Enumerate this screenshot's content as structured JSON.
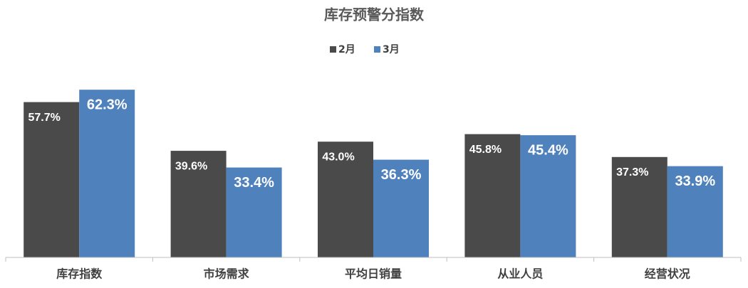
{
  "chart_data": {
    "type": "bar",
    "title": "库存预警分指数",
    "categories": [
      "库存指数",
      "市场需求",
      "平均日销量",
      "从业人员",
      "经营状况"
    ],
    "series": [
      {
        "name": "2月",
        "color": "#4a4a4a",
        "values": [
          57.7,
          39.6,
          43.0,
          45.8,
          37.3
        ],
        "value_labels": [
          "57.7%",
          "39.6%",
          "43.0%",
          "45.8%",
          "37.3%"
        ]
      },
      {
        "name": "3月",
        "color": "#4f81bd",
        "values": [
          62.3,
          33.4,
          36.3,
          45.4,
          33.9
        ],
        "value_labels": [
          "62.3%",
          "33.4%",
          "36.3%",
          "45.4%",
          "33.9%"
        ]
      }
    ],
    "ylim": [
      0,
      70
    ],
    "legend": "top"
  }
}
